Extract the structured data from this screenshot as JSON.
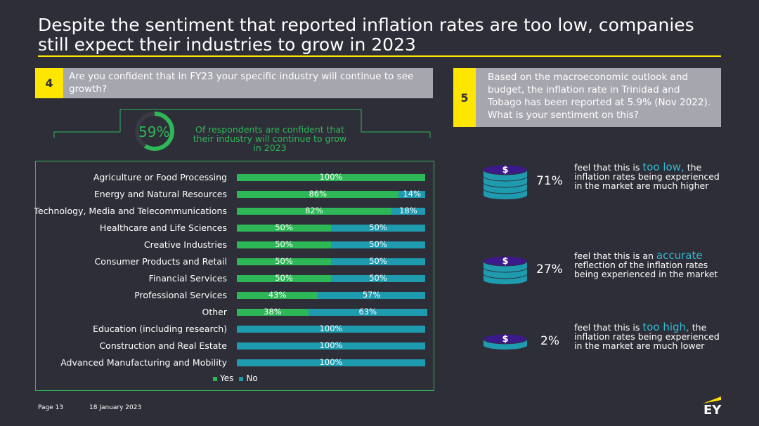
{
  "title": "Despite the sentiment that reported inflation rates are too low, companies still expect their industries to grow in 2023",
  "q4": {
    "number": "4",
    "text": "Are you confident that in FY23 your specific industry will continue to see growth?",
    "donut_value": "59%",
    "donut_fraction": 0.59,
    "caption": "Of respondents are confident that their industry will continue to grow in 2023"
  },
  "q5": {
    "number": "5",
    "text": "Based on the macroeconomic outlook and budget, the inflation rate in Trinidad and Tobago has been reported at 5.9% (Nov 2022). What is your sentiment on this?",
    "stats": [
      {
        "pct": "71%",
        "pre": "feel that this is ",
        "highlight": "too low,",
        "post": " the inflation rates being experienced in the market are much higher",
        "coin_icon": "dollar-coin-stack-icon"
      },
      {
        "pct": "27%",
        "pre": "feel that this is an ",
        "highlight": "accurate",
        "post": " reflection of the inflation rates being experienced in the market",
        "coin_icon": "dollar-coin-stack-icon"
      },
      {
        "pct": "2%",
        "pre": "feel that this is ",
        "highlight": "too high,",
        "post": " the inflation rates being experienced in the market are much lower",
        "coin_icon": "dollar-coin-icon"
      }
    ]
  },
  "chart_data": {
    "type": "bar",
    "orientation": "horizontal-stacked-100",
    "categories": [
      "Agriculture or Food Processing",
      "Energy and Natural Resources",
      "Technology, Media and Telecommunications",
      "Healthcare and Life Sciences",
      "Creative Industries",
      "Consumer Products and Retail",
      "Financial Services",
      "Professional Services",
      "Other",
      "Education (including research)",
      "Construction and Real Estate",
      "Advanced Manufacturing and Mobility"
    ],
    "series": [
      {
        "name": "Yes",
        "color": "#2db757",
        "values": [
          100,
          86,
          82,
          50,
          50,
          50,
          50,
          43,
          38,
          0,
          0,
          0
        ]
      },
      {
        "name": "No",
        "color": "#1f9bb0",
        "values": [
          0,
          14,
          18,
          50,
          50,
          50,
          50,
          57,
          63,
          100,
          100,
          100
        ]
      }
    ],
    "legend": "bottom"
  },
  "colors": {
    "accent": "#ffe600",
    "green": "#2db757",
    "teal": "#1f9bb0",
    "background": "#2e2e38"
  },
  "footer": {
    "page": "Page 13",
    "date": "18 January 2023",
    "logo": "EY"
  }
}
